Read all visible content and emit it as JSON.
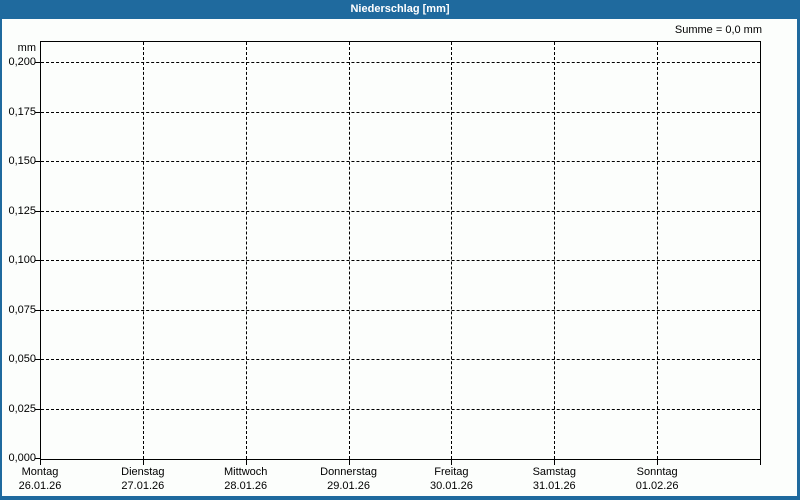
{
  "window": {
    "title": "Niederschlag [mm]"
  },
  "colors": {
    "titlebar_bg": "#1f6a9e",
    "titlebar_text": "#ffffff",
    "frame": "#1f6a9e",
    "background": "#fcfefc",
    "plot_border": "#000000",
    "grid": "#000000",
    "text": "#000000"
  },
  "chart_data": {
    "type": "bar",
    "title": "Niederschlag [mm]",
    "unit": "mm",
    "sum_label": "Summe = 0,0 mm",
    "sum_value_mm": 0.0,
    "ylim": [
      0,
      0.2
    ],
    "y_tick_step": 0.025,
    "grid": true,
    "legend": false,
    "y_ticks": [
      {
        "value": 0.0,
        "label": "0,000"
      },
      {
        "value": 0.025,
        "label": "0,025"
      },
      {
        "value": 0.05,
        "label": "0,050"
      },
      {
        "value": 0.075,
        "label": "0,075"
      },
      {
        "value": 0.1,
        "label": "0,100"
      },
      {
        "value": 0.125,
        "label": "0,125"
      },
      {
        "value": 0.15,
        "label": "0,150"
      },
      {
        "value": 0.175,
        "label": "0,175"
      },
      {
        "value": 0.2,
        "label": "0,200"
      }
    ],
    "x_categories": [
      {
        "day": "Montag",
        "date": "26.01.26"
      },
      {
        "day": "Dienstag",
        "date": "27.01.26"
      },
      {
        "day": "Mittwoch",
        "date": "28.01.26"
      },
      {
        "day": "Donnerstag",
        "date": "29.01.26"
      },
      {
        "day": "Freitag",
        "date": "30.01.26"
      },
      {
        "day": "Samstag",
        "date": "31.01.26"
      },
      {
        "day": "Sonntag",
        "date": "01.02.26"
      }
    ],
    "series": [
      {
        "name": "Niederschlag",
        "values": [
          0,
          0,
          0,
          0,
          0,
          0,
          0
        ]
      }
    ]
  }
}
